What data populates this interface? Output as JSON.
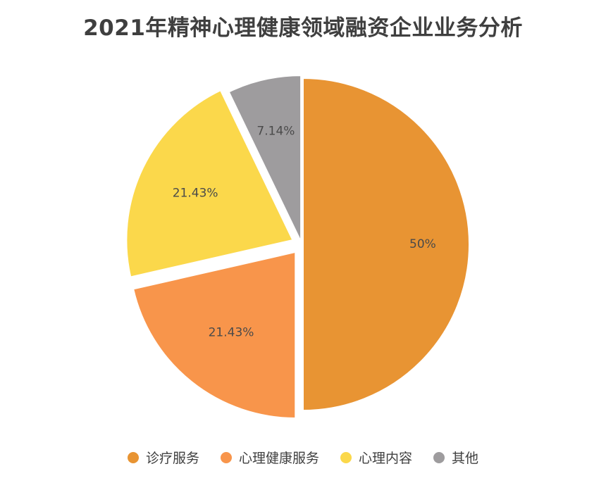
{
  "chart_data": {
    "type": "pie",
    "title": "2021年精神心理健康领域融资企业业务分析",
    "categories": [
      "诊疗服务",
      "心理健康服务",
      "心理内容",
      "其他"
    ],
    "values": [
      50,
      21.43,
      21.43,
      7.14
    ],
    "labels": [
      "50%",
      "21.43%",
      "21.43%",
      "7.14%"
    ],
    "colors": [
      "#E89433",
      "#F8954B",
      "#FBD84B",
      "#9E9C9E"
    ],
    "legend_position": "bottom",
    "start_angle": "12 o'clock, clockwise"
  }
}
